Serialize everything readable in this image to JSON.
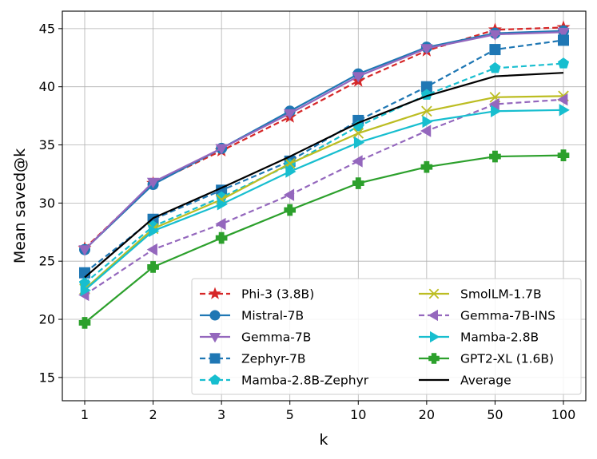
{
  "chart_data": {
    "type": "line",
    "title": "",
    "xlabel": "k",
    "ylabel": "Mean saved@k",
    "categories": [
      "1",
      "2",
      "3",
      "5",
      "10",
      "20",
      "50",
      "100"
    ],
    "ylim": [
      13,
      46.5
    ],
    "yticks": [
      15,
      20,
      25,
      30,
      35,
      40,
      45
    ],
    "grid": true,
    "legend_position": "lower-right",
    "series": [
      {
        "name": "Phi-3 (3.8B)",
        "color": "#d62728",
        "dash": "dashed",
        "marker": "star",
        "values": [
          26.1,
          31.7,
          34.5,
          37.4,
          40.5,
          43.1,
          44.9,
          45.1
        ]
      },
      {
        "name": "Mistral-7B",
        "color": "#1f77b4",
        "dash": "solid",
        "marker": "circle",
        "values": [
          26.0,
          31.6,
          34.7,
          37.9,
          41.1,
          43.4,
          44.6,
          44.8
        ]
      },
      {
        "name": "Gemma-7B",
        "color": "#9467bd",
        "dash": "solid",
        "marker": "triangle-down",
        "values": [
          26.0,
          31.8,
          34.7,
          37.7,
          40.9,
          43.3,
          44.5,
          44.7
        ]
      },
      {
        "name": "Zephyr-7B",
        "color": "#1f77b4",
        "dash": "dashed",
        "marker": "square",
        "values": [
          24.0,
          28.6,
          31.1,
          33.6,
          37.1,
          40.0,
          43.2,
          44.0
        ]
      },
      {
        "name": "Mamba-2.8B-Zephyr",
        "color": "#17becf",
        "dash": "dashed",
        "marker": "pentagon",
        "values": [
          23.1,
          28.0,
          30.5,
          33.3,
          36.6,
          39.3,
          41.6,
          42.0
        ]
      },
      {
        "name": "SmolLM-1.7B",
        "color": "#bcbd22",
        "dash": "solid",
        "marker": "x",
        "values": [
          22.6,
          27.8,
          30.3,
          33.4,
          36.0,
          37.9,
          39.1,
          39.2
        ]
      },
      {
        "name": "Gemma-7B-INS",
        "color": "#9467bd",
        "dash": "dashed",
        "marker": "triangle-left",
        "values": [
          22.1,
          26.0,
          28.2,
          30.7,
          33.6,
          36.2,
          38.5,
          38.9
        ]
      },
      {
        "name": "Mamba-2.8B",
        "color": "#17becf",
        "dash": "solid",
        "marker": "triangle-right",
        "values": [
          22.5,
          27.6,
          29.9,
          32.7,
          35.2,
          37.0,
          37.9,
          38.0
        ]
      },
      {
        "name": "GPT2-XL (1.6B)",
        "color": "#2ca02c",
        "dash": "solid",
        "marker": "plus",
        "values": [
          19.7,
          24.5,
          27.0,
          29.4,
          31.7,
          33.1,
          34.0,
          34.1
        ]
      },
      {
        "name": "Average",
        "color": "#000000",
        "dash": "solid",
        "marker": "none",
        "values": [
          23.6,
          28.7,
          31.3,
          34.0,
          36.9,
          39.2,
          40.9,
          41.2
        ]
      }
    ]
  }
}
